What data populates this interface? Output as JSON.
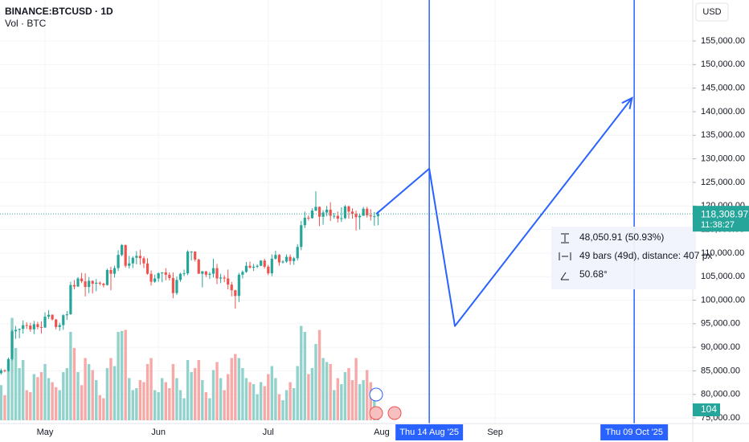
{
  "chart_data": {
    "type": "candlestick",
    "title": "BINANCE:BTCUSD · 1D",
    "subtitle": "Vol · BTC",
    "currency": "USD",
    "up_color": "#26a69a",
    "down_color": "#ef5350",
    "volume_up_color": "#92d2cc",
    "volume_down_color": "#f7a9a7",
    "drawing_color": "#2962ff",
    "xlim": [
      -0.3,
      189
    ],
    "xticks": [
      {
        "value": 12,
        "label": "May"
      },
      {
        "value": 43,
        "label": "Jun"
      },
      {
        "value": 73,
        "label": "Jul"
      },
      {
        "value": 104,
        "label": "Aug"
      },
      {
        "value": 135,
        "label": "Sep"
      }
    ],
    "ylim": [
      69900,
      163700
    ],
    "yticks": [
      {
        "value": 75000,
        "label": "75,000.00"
      },
      {
        "value": 80000,
        "label": "80,000.00"
      },
      {
        "value": 85000,
        "label": "85,000.00"
      },
      {
        "value": 90000,
        "label": "90,000.00"
      },
      {
        "value": 95000,
        "label": "95,000.00"
      },
      {
        "value": 100000,
        "label": "100,000.00"
      },
      {
        "value": 105000,
        "label": "105,000.00"
      },
      {
        "value": 110000,
        "label": "110,000.00"
      },
      {
        "value": 115000,
        "label": "115,000.00"
      },
      {
        "value": 120000,
        "label": "120,000.00"
      },
      {
        "value": 125000,
        "label": "125,000.00"
      },
      {
        "value": 130000,
        "label": "130,000.00"
      },
      {
        "value": 135000,
        "label": "135,000.00"
      },
      {
        "value": 140000,
        "label": "140,000.00"
      },
      {
        "value": 145000,
        "label": "145,000.00"
      },
      {
        "value": 150000,
        "label": "150,000.00"
      },
      {
        "value": 155000,
        "label": "155,000.00"
      }
    ],
    "volume_ylim": [
      0,
      1200
    ],
    "ohlc": [
      [
        84500,
        85500,
        84200,
        85100
      ],
      [
        85100,
        85300,
        84700,
        85000
      ],
      [
        85000,
        87800,
        84800,
        87500
      ],
      [
        87500,
        93800,
        87200,
        93400
      ],
      [
        93400,
        94500,
        91800,
        93700
      ],
      [
        93700,
        94000,
        91900,
        93900
      ],
      [
        93900,
        95700,
        92900,
        94700
      ],
      [
        94700,
        95300,
        93900,
        94600
      ],
      [
        94600,
        95200,
        93300,
        93800
      ],
      [
        93800,
        95600,
        92800,
        94900
      ],
      [
        94900,
        95400,
        93800,
        94300
      ],
      [
        94300,
        95500,
        92900,
        94200
      ],
      [
        94200,
        97400,
        94100,
        96500
      ],
      [
        96500,
        97900,
        96000,
        96900
      ],
      [
        96900,
        97000,
        95700,
        95900
      ],
      [
        95900,
        96000,
        93800,
        94300
      ],
      [
        94300,
        95200,
        93500,
        94700
      ],
      [
        94700,
        97000,
        93700,
        96800
      ],
      [
        96800,
        97700,
        95800,
        97000
      ],
      [
        97000,
        103900,
        96900,
        103200
      ],
      [
        103200,
        104300,
        102300,
        102900
      ],
      [
        102900,
        104900,
        102800,
        104600
      ],
      [
        104600,
        105800,
        103600,
        104000
      ],
      [
        104000,
        105700,
        100800,
        102800
      ],
      [
        102800,
        104900,
        101500,
        104100
      ],
      [
        104100,
        104200,
        101400,
        103500
      ],
      [
        103500,
        104500,
        101900,
        103700
      ],
      [
        103700,
        104000,
        103100,
        103500
      ],
      [
        103500,
        103700,
        102700,
        103200
      ],
      [
        103200,
        106700,
        103100,
        106400
      ],
      [
        106400,
        107100,
        102100,
        105600
      ],
      [
        105600,
        107300,
        104800,
        106800
      ],
      [
        106800,
        110600,
        106200,
        109600
      ],
      [
        109600,
        111900,
        109300,
        111700
      ],
      [
        111700,
        111800,
        106900,
        107300
      ],
      [
        107300,
        109400,
        106700,
        107800
      ],
      [
        107800,
        109300,
        106800,
        109000
      ],
      [
        109000,
        110400,
        107600,
        109400
      ],
      [
        109400,
        110700,
        107500,
        108900
      ],
      [
        108900,
        109300,
        106800,
        107800
      ],
      [
        107800,
        108900,
        105400,
        105600
      ],
      [
        105600,
        106300,
        103100,
        103900
      ],
      [
        103900,
        105400,
        103700,
        104600
      ],
      [
        104600,
        105900,
        103900,
        105700
      ],
      [
        105700,
        105900,
        103800,
        105900
      ],
      [
        105900,
        106800,
        104200,
        105400
      ],
      [
        105400,
        105900,
        104200,
        104700
      ],
      [
        104700,
        105900,
        100400,
        101500
      ],
      [
        101500,
        105000,
        101100,
        104300
      ],
      [
        104300,
        105800,
        103900,
        105600
      ],
      [
        105600,
        106500,
        105100,
        105700
      ],
      [
        105700,
        110600,
        105300,
        110300
      ],
      [
        110300,
        110400,
        108400,
        110300
      ],
      [
        110300,
        110400,
        108200,
        108600
      ],
      [
        108600,
        108800,
        105600,
        105600
      ],
      [
        105600,
        106200,
        102700,
        106100
      ],
      [
        106100,
        106200,
        104900,
        105400
      ],
      [
        105400,
        106000,
        104500,
        105600
      ],
      [
        105600,
        108800,
        104800,
        106800
      ],
      [
        106800,
        107700,
        103400,
        104600
      ],
      [
        104600,
        105600,
        103600,
        104800
      ],
      [
        104800,
        105300,
        103800,
        104600
      ],
      [
        104600,
        106500,
        102300,
        103300
      ],
      [
        103300,
        103900,
        100800,
        102100
      ],
      [
        102100,
        102200,
        98200,
        100900
      ],
      [
        100900,
        105800,
        99600,
        105400
      ],
      [
        105400,
        106300,
        104600,
        106000
      ],
      [
        106000,
        108100,
        105800,
        107300
      ],
      [
        107300,
        108200,
        106700,
        106900
      ],
      [
        106900,
        107700,
        106200,
        107100
      ],
      [
        107100,
        107600,
        106800,
        107300
      ],
      [
        107300,
        108500,
        107200,
        108400
      ],
      [
        108400,
        108800,
        106700,
        107100
      ],
      [
        107100,
        107500,
        105300,
        105700
      ],
      [
        105700,
        109700,
        105100,
        108800
      ],
      [
        108800,
        110500,
        108600,
        109600
      ],
      [
        109600,
        109800,
        107300,
        108000
      ],
      [
        108000,
        108500,
        107800,
        108200
      ],
      [
        108200,
        109700,
        107900,
        109200
      ],
      [
        109200,
        109700,
        107500,
        108300
      ],
      [
        108300,
        109200,
        107500,
        108900
      ],
      [
        108900,
        111900,
        108400,
        111300
      ],
      [
        111300,
        116800,
        110600,
        115900
      ],
      [
        115900,
        118800,
        115300,
        117500
      ],
      [
        117500,
        118000,
        116900,
        117400
      ],
      [
        117400,
        119500,
        117300,
        119000
      ],
      [
        119000,
        123100,
        118900,
        119800
      ],
      [
        119800,
        119900,
        115700,
        117700
      ],
      [
        117700,
        119100,
        116000,
        118600
      ],
      [
        118600,
        120000,
        117800,
        119200
      ],
      [
        119200,
        120800,
        116800,
        117900
      ],
      [
        117900,
        118500,
        117300,
        117900
      ],
      [
        117900,
        118800,
        116500,
        117300
      ],
      [
        117300,
        119700,
        116600,
        117400
      ],
      [
        117400,
        120200,
        117200,
        119900
      ],
      [
        119900,
        120100,
        117300,
        118800
      ],
      [
        118800,
        119500,
        117300,
        118300
      ],
      [
        118300,
        119000,
        114800,
        117600
      ],
      [
        117600,
        118400,
        115000,
        117900
      ],
      [
        117900,
        119800,
        117900,
        119400
      ],
      [
        119400,
        119800,
        117500,
        118000
      ],
      [
        118000,
        119300,
        116900,
        117800
      ],
      [
        117800,
        118700,
        115800,
        117800
      ],
      [
        117800,
        118900,
        115900,
        118308.97
      ]
    ],
    "volume": [
      350,
      250,
      560,
      1020,
      720,
      520,
      600,
      300,
      280,
      460,
      430,
      480,
      560,
      420,
      380,
      330,
      300,
      480,
      520,
      880,
      720,
      480,
      350,
      620,
      560,
      500,
      400,
      250,
      220,
      520,
      620,
      540,
      880,
      890,
      900,
      420,
      300,
      320,
      400,
      380,
      560,
      620,
      300,
      280,
      420,
      380,
      320,
      560,
      420,
      300,
      220,
      600,
      480,
      520,
      600,
      400,
      280,
      220,
      500,
      580,
      420,
      300,
      460,
      620,
      660,
      620,
      520,
      420,
      380,
      360,
      260,
      380,
      340,
      460,
      540,
      420,
      260,
      200,
      300,
      380,
      320,
      540,
      940,
      880,
      460,
      520,
      760,
      900,
      620,
      580,
      560,
      300,
      420,
      360,
      480,
      520,
      400,
      620,
      360,
      400,
      500,
      380,
      300,
      104
    ],
    "volume_value_label": "104",
    "last_price_label": "118,308.97",
    "countdown": "11:38:27",
    "drawing": {
      "x": [
        102.5,
        117,
        124,
        172.4
      ],
      "y": [
        118300,
        127900,
        94500,
        142900
      ]
    },
    "date_markers": [
      {
        "value": 117,
        "label": "Thu 14 Aug '25"
      },
      {
        "value": 173,
        "label": "Thu 09 Oct '25"
      }
    ],
    "measure": {
      "price_change": "48,050.91 (50.93%)",
      "bars": "49 bars (49d), distance: 407 px",
      "angle": "50.68°"
    }
  }
}
